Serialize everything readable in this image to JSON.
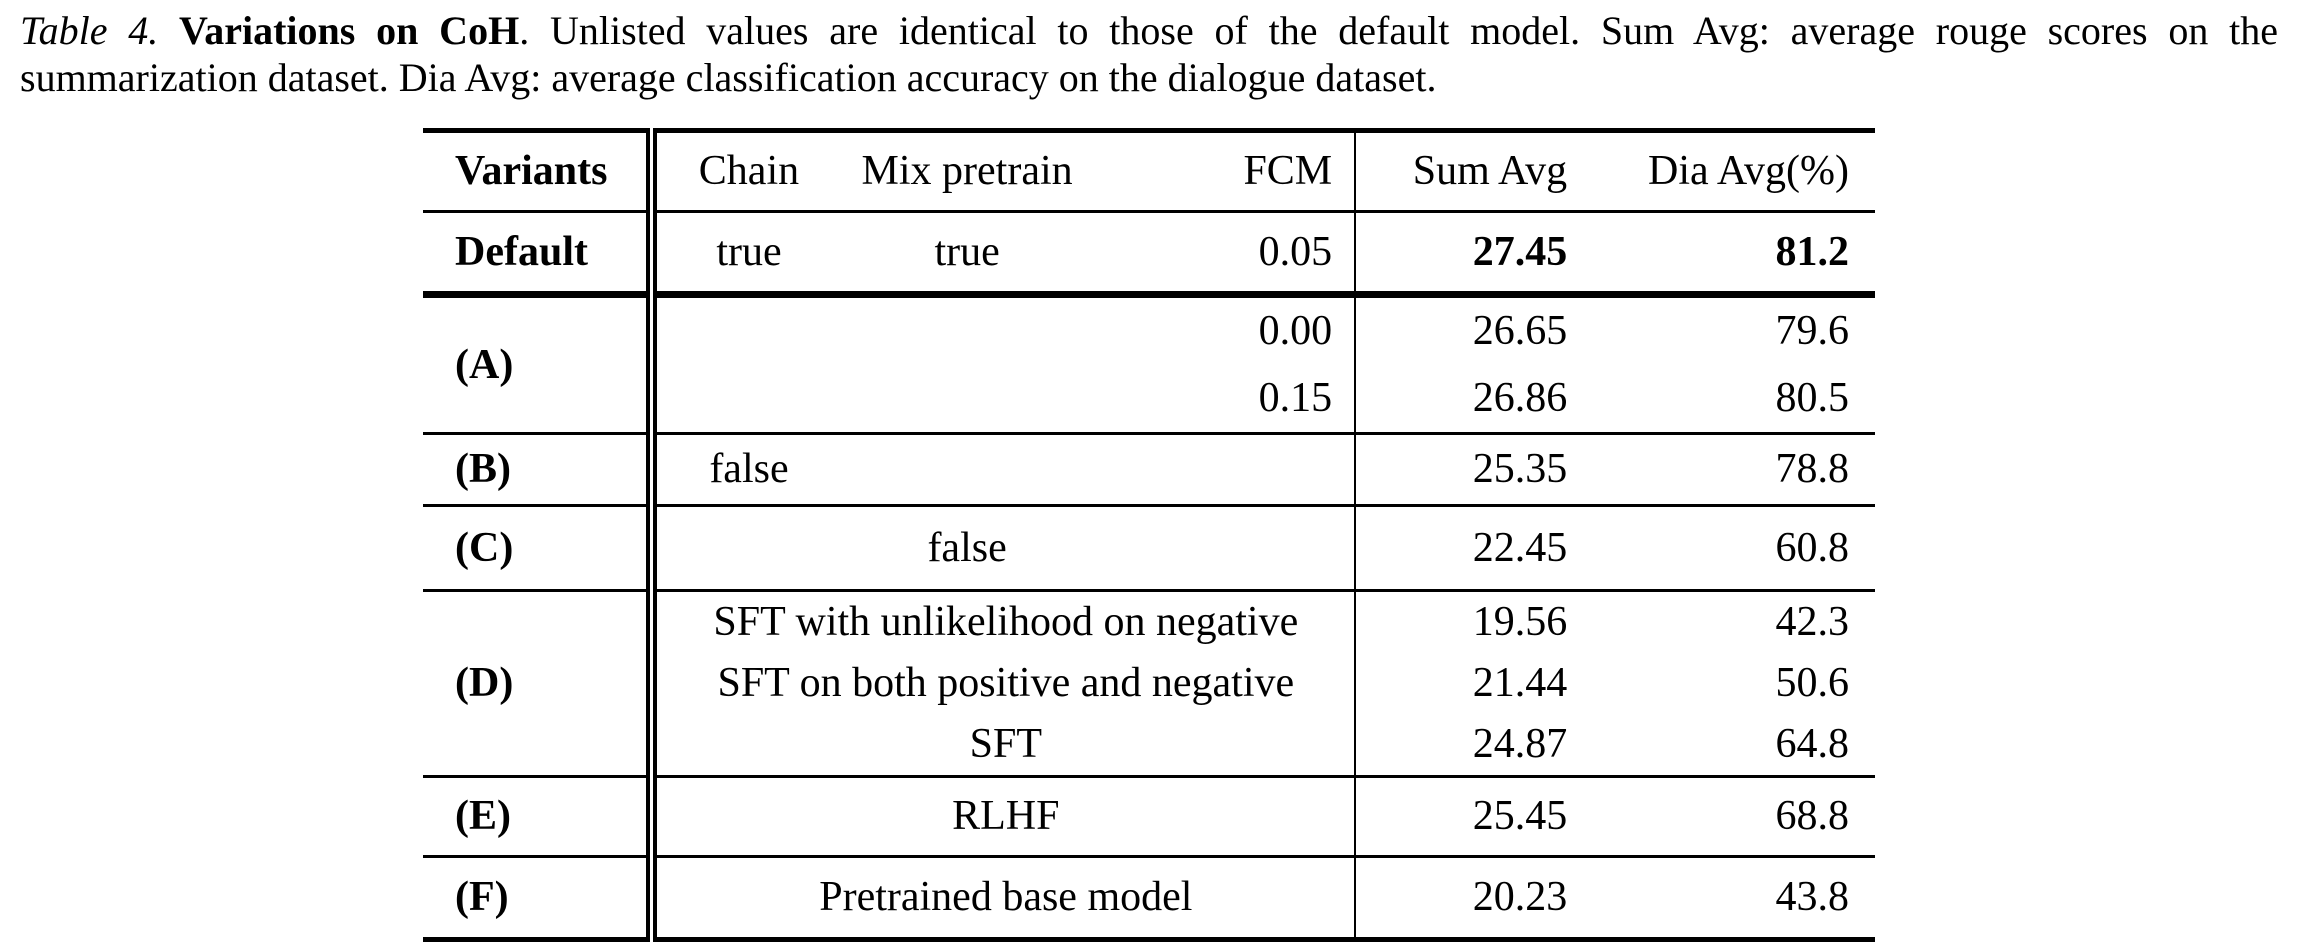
{
  "colors": {
    "text": "#000000",
    "background": "#ffffff",
    "rules": "#000000"
  },
  "caption": {
    "label": "Table 4.",
    "title": "Variations on CoH",
    "body": ". Unlisted values are identical to those of the default model. Sum Avg: average rouge scores on the summarization dataset. Dia Avg: average classification accuracy on the dialogue dataset."
  },
  "table": {
    "headers": {
      "variants": "Variants",
      "chain": "Chain",
      "mix_pretrain": "Mix pretrain",
      "fcm": "FCM",
      "sum_avg": "Sum Avg",
      "dia_avg": "Dia Avg(%)"
    },
    "rows": {
      "default": {
        "variant": "Default",
        "chain": "true",
        "mix_pretrain": "true",
        "fcm": "0.05",
        "sum_avg": "27.45",
        "dia_avg": "81.2"
      },
      "a": {
        "variant": "(A)",
        "subrows": [
          {
            "fcm": "0.00",
            "sum_avg": "26.65",
            "dia_avg": "79.6"
          },
          {
            "fcm": "0.15",
            "sum_avg": "26.86",
            "dia_avg": "80.5"
          }
        ]
      },
      "b": {
        "variant": "(B)",
        "chain": "false",
        "sum_avg": "25.35",
        "dia_avg": "78.8"
      },
      "c": {
        "variant": "(C)",
        "mix_pretrain": "false",
        "sum_avg": "22.45",
        "dia_avg": "60.8"
      },
      "d": {
        "variant": "(D)",
        "subrows": [
          {
            "method": "SFT with unlikelihood on negative",
            "sum_avg": "19.56",
            "dia_avg": "42.3"
          },
          {
            "method": "SFT on both positive and negative",
            "sum_avg": "21.44",
            "dia_avg": "50.6"
          },
          {
            "method": "SFT",
            "sum_avg": "24.87",
            "dia_avg": "64.8"
          }
        ]
      },
      "e": {
        "variant": "(E)",
        "method": "RLHF",
        "sum_avg": "25.45",
        "dia_avg": "68.8"
      },
      "f": {
        "variant": "(F)",
        "method": "Pretrained base model",
        "sum_avg": "20.23",
        "dia_avg": "43.8"
      }
    }
  }
}
